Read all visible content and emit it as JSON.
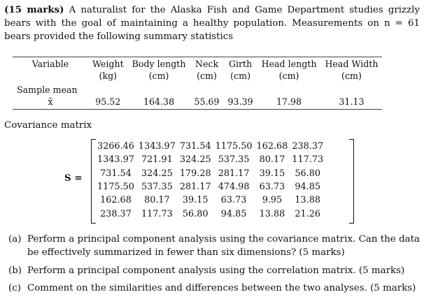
{
  "intro": {
    "marks": "(15 marks)",
    "text": " A naturalist for the Alaska Fish and Game Department studies grizzly bears with the goal of maintaining a healthy population. Measurements on n = 61 bears provided the following summary statistics"
  },
  "table": {
    "header_row1": [
      "Variable",
      "Weight",
      "Body length",
      "Neck",
      "Girth",
      "Head length",
      "Head Width"
    ],
    "header_row2": [
      "",
      "(kg)",
      "(cm)",
      "(cm)",
      "(cm)",
      "(cm)",
      "(cm)"
    ],
    "sample_mean_label": "Sample mean",
    "xbar_symbol": "x̄",
    "means": [
      "95.52",
      "164.38",
      "55.69",
      "93.39",
      "17.98",
      "31.13"
    ]
  },
  "covariance": {
    "title": "Covariance matrix",
    "label": "S =",
    "rows": [
      [
        "3266.46",
        "1343.97",
        "731.54",
        "1175.50",
        "162.68",
        "238.37"
      ],
      [
        "1343.97",
        "721.91",
        "324.25",
        "537.35",
        "80.17",
        "117.73"
      ],
      [
        "731.54",
        "324.25",
        "179.28",
        "281.17",
        "39.15",
        "56.80"
      ],
      [
        "1175.50",
        "537.35",
        "281.17",
        "474.98",
        "63.73",
        "94.85"
      ],
      [
        "162.68",
        "80.17",
        "39.15",
        "63.73",
        "9.95",
        "13.88"
      ],
      [
        "238.37",
        "117.73",
        "56.80",
        "94.85",
        "13.88",
        "21.26"
      ]
    ]
  },
  "questions": [
    {
      "label": "(a)",
      "text": "Perform a principal component analysis using the covariance matrix. Can the data be effectively summarized in fewer than six dimensions? (5 marks)"
    },
    {
      "label": "(b)",
      "text": "Perform a principal component analysis using the correlation matrix. (5 marks)"
    },
    {
      "label": "(c)",
      "text": "Comment on the similarities and differences between the two analyses. (5 marks)"
    }
  ]
}
